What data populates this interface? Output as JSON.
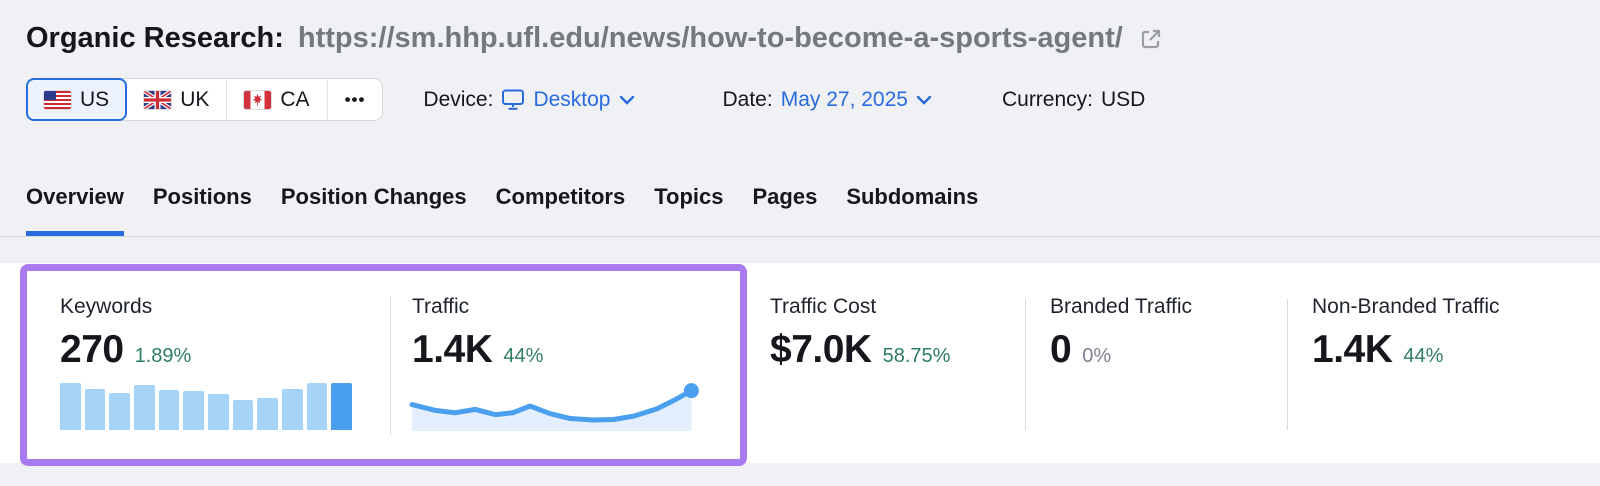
{
  "header": {
    "title_prefix": "Organic Research:",
    "url": "https://sm.hhp.ufl.edu/news/how-to-become-a-sports-agent/"
  },
  "filters": {
    "countries": [
      {
        "code": "US",
        "selected": true
      },
      {
        "code": "UK",
        "selected": false
      },
      {
        "code": "CA",
        "selected": false
      }
    ],
    "more_label": "•••",
    "device_label": "Device:",
    "device_value": "Desktop",
    "date_label": "Date:",
    "date_value": "May 27, 2025",
    "currency_label": "Currency:",
    "currency_value": "USD"
  },
  "tabs": [
    {
      "label": "Overview",
      "active": true
    },
    {
      "label": "Positions",
      "active": false
    },
    {
      "label": "Position Changes",
      "active": false
    },
    {
      "label": "Competitors",
      "active": false
    },
    {
      "label": "Topics",
      "active": false
    },
    {
      "label": "Pages",
      "active": false
    },
    {
      "label": "Subdomains",
      "active": false
    }
  ],
  "metrics": [
    {
      "label": "Keywords",
      "value": "270",
      "change": "1.89%",
      "change_color": "green"
    },
    {
      "label": "Traffic",
      "value": "1.4K",
      "change": "44%",
      "change_color": "green"
    },
    {
      "label": "Traffic Cost",
      "value": "$7.0K",
      "change": "58.75%",
      "change_color": "green"
    },
    {
      "label": "Branded Traffic",
      "value": "0",
      "change": "0%",
      "change_color": "gray"
    },
    {
      "label": "Non-Branded Traffic",
      "value": "1.4K",
      "change": "44%",
      "change_color": "green"
    }
  ],
  "chart_data": [
    {
      "type": "bar",
      "title": "Keywords trend sparkline",
      "values": [
        1.0,
        0.87,
        0.79,
        0.95,
        0.85,
        0.82,
        0.77,
        0.63,
        0.68,
        0.88,
        1.0,
        1.0
      ],
      "highlight_last": true,
      "xlabel": "",
      "ylabel": "",
      "grid": false,
      "axes_hidden": true
    },
    {
      "type": "line",
      "title": "Traffic trend sparkline",
      "points_pct": [
        [
          0,
          45
        ],
        [
          8,
          57
        ],
        [
          15,
          62
        ],
        [
          22,
          55
        ],
        [
          29,
          66
        ],
        [
          35,
          62
        ],
        [
          41,
          48
        ],
        [
          48,
          64
        ],
        [
          55,
          74
        ],
        [
          63,
          77
        ],
        [
          70,
          76
        ],
        [
          77,
          69
        ],
        [
          85,
          54
        ],
        [
          91,
          36
        ],
        [
          97,
          16
        ]
      ],
      "end_dot": true,
      "area_fill": true,
      "xlabel": "",
      "ylabel": "",
      "grid": false,
      "axes_hidden": true
    }
  ],
  "colors": {
    "accent_blue": "#2a6be0",
    "green": "#2e7d64",
    "gray_change": "#7e838e",
    "bar_light": "#a6d3f8",
    "bar_dark": "#4aa0ee",
    "line_blue": "#4aa0ee",
    "line_area": "#e3effc",
    "highlight_purple": "#a97bf0"
  }
}
